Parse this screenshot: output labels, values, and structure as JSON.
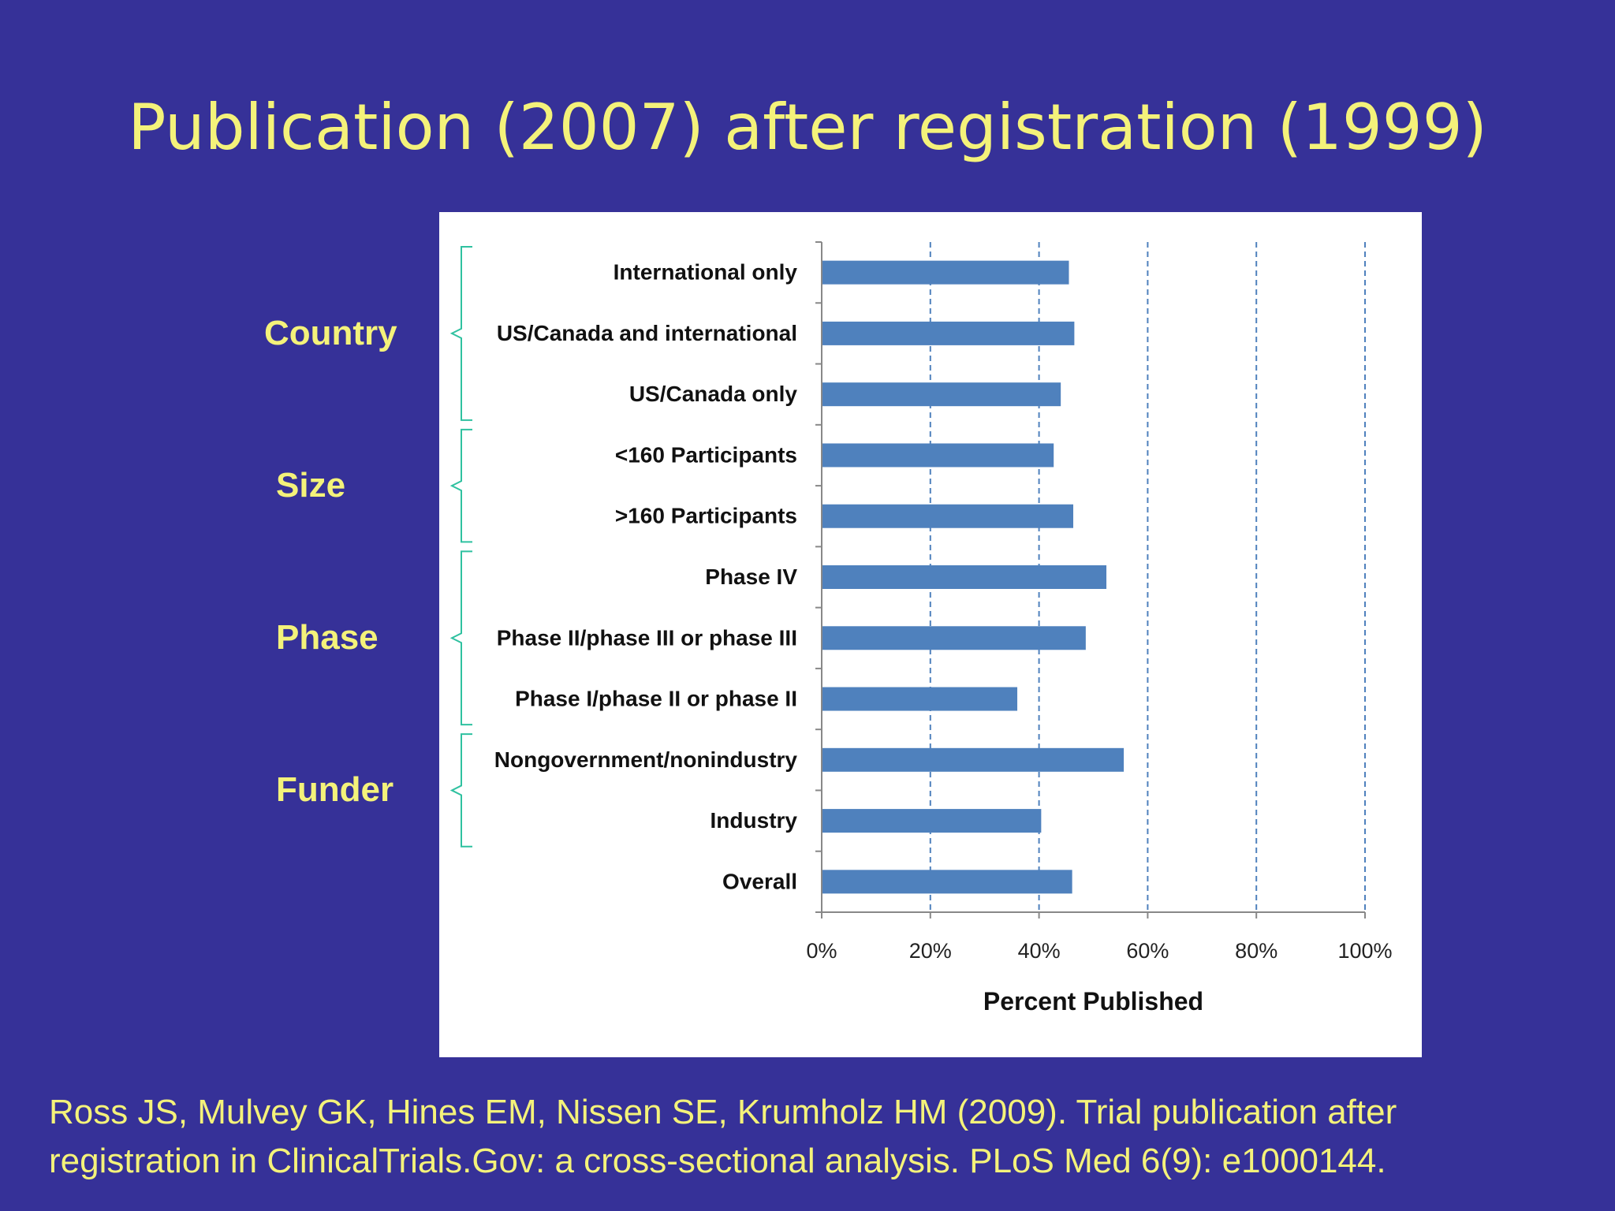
{
  "slide": {
    "title": "Publication (2007) after registration (1999)",
    "citation_lines": [
      "Ross JS, Mulvey GK, Hines EM, Nissen SE, Krumholz HM (2009). Trial publication after",
      "registration in ClinicalTrials.Gov: a cross-sectional analysis. PLoS  Med 6(9): e1000144."
    ]
  },
  "groups": [
    {
      "label": "Country",
      "first": 0,
      "last": 2
    },
    {
      "label": "Size",
      "first": 3,
      "last": 4
    },
    {
      "label": "Phase",
      "first": 5,
      "last": 7
    },
    {
      "label": "Funder",
      "first": 8,
      "last": 9
    }
  ],
  "colors": {
    "background": "#363198",
    "text": "#f4f27a",
    "bar": "#4f81bd",
    "bracket": "#2fc1a0",
    "panel": "#ffffff"
  },
  "chart_data": {
    "type": "bar",
    "orientation": "horizontal",
    "categories": [
      "International only",
      "US/Canada and international",
      "US/Canada only",
      "<160 Participants",
      ">160 Participants",
      "Phase IV",
      "Phase II/phase III or phase III",
      "Phase I/phase II or phase II",
      "Nongovernment/nonindustry",
      "Industry",
      "Overall"
    ],
    "values": [
      45.5,
      46.5,
      44,
      42.7,
      46.3,
      52.4,
      48.6,
      36,
      55.6,
      40.4,
      46.1
    ],
    "xlabel": "Percent Published",
    "xlim": [
      0,
      100
    ],
    "xticks": [
      0,
      20,
      40,
      60,
      80,
      100
    ],
    "xtick_labels": [
      "0%",
      "20%",
      "40%",
      "60%",
      "80%",
      "100%"
    ],
    "grid": "vertical dashed",
    "legend": "none"
  }
}
